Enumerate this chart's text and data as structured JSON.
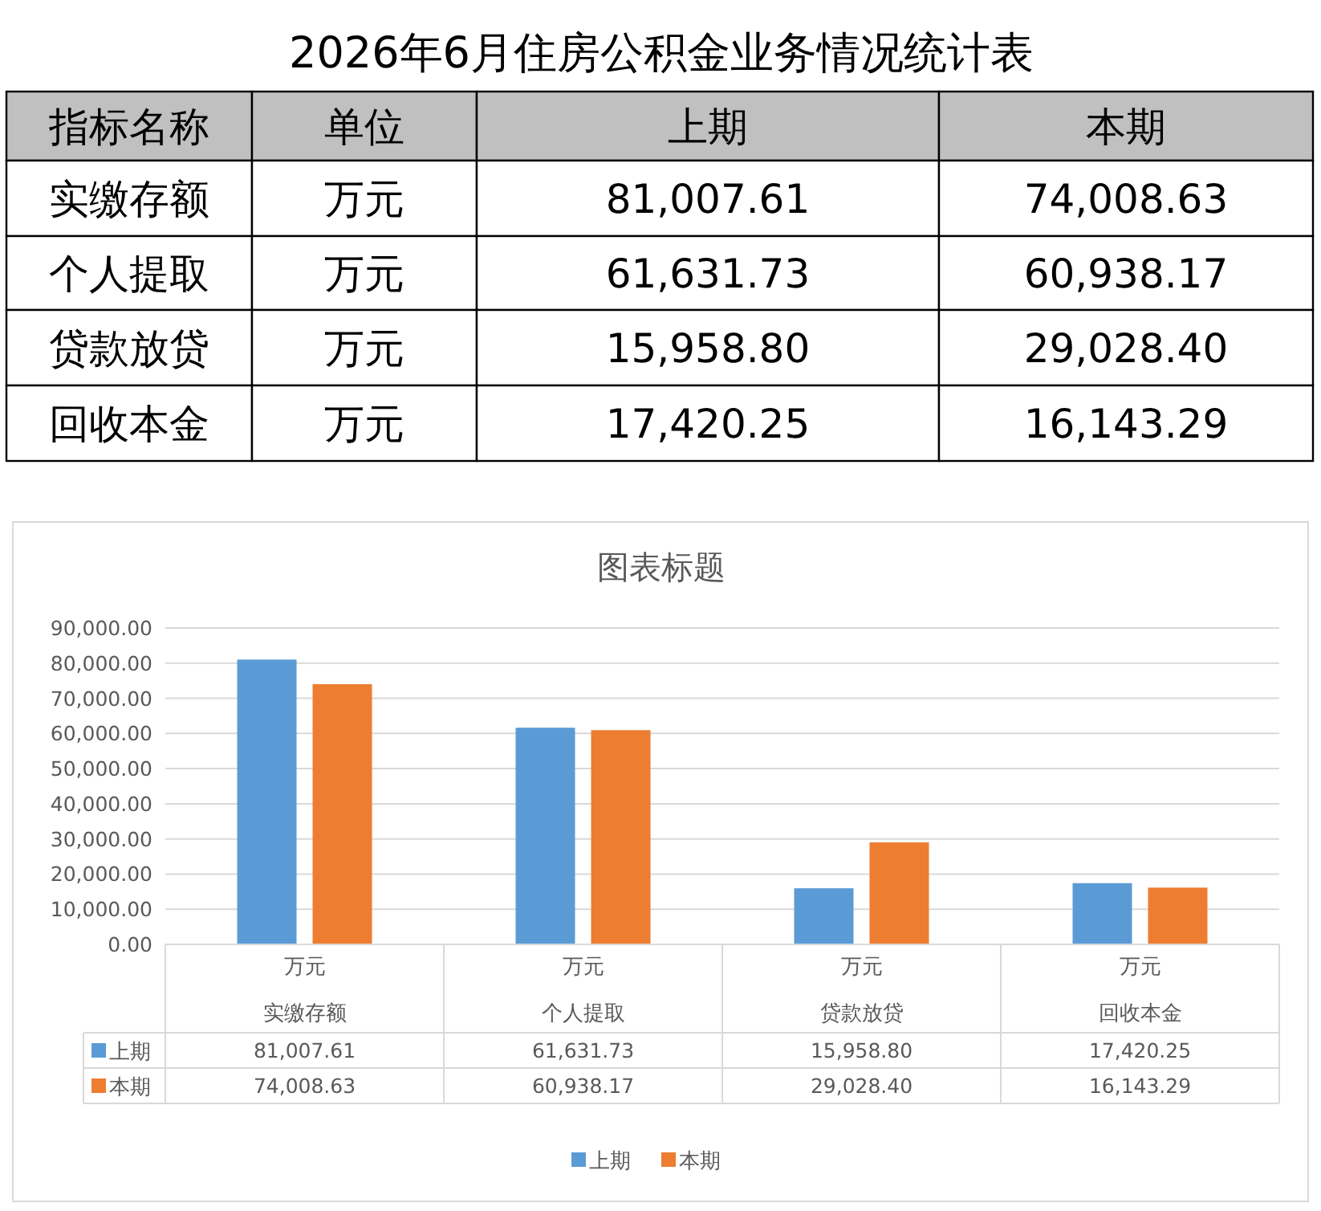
{
  "chart_data": [
    {
      "type": "other",
      "title": "2026年6月住房公积金业务情况统计表",
      "annotations": [
        "指标名称",
        "单位",
        "上期",
        "本期",
        "实缴存额",
        "万元",
        "81,007.61",
        "74,008.63",
        "个人提取",
        "万元",
        "61,631.73",
        "60,938.17",
        "贷款放贷",
        "万元",
        "15,958.80",
        "29,028.40",
        "回收本金",
        "万元",
        "17,420.25",
        "16,143.29"
      ]
    },
    {
      "type": "bar",
      "title": "图表标题",
      "categories": [
        "实缴存额",
        "个人提取",
        "贷款放贷",
        "回收本金"
      ],
      "annotations": [
        "万元",
        "万元",
        "万元",
        "万元"
      ],
      "series": [
        {
          "name": "上期",
          "color": "#5b9bd5",
          "values": [
            81007.61,
            61631.73,
            15958.8,
            17420.25
          ],
          "value_labels": [
            "81,007.61",
            "61,631.73",
            "15,958.80",
            "17,420.25"
          ]
        },
        {
          "name": "本期",
          "color": "#ed7d31",
          "values": [
            74008.63,
            60938.17,
            29028.4,
            16143.29
          ],
          "value_labels": [
            "74,008.63",
            "60,938.17",
            "29,028.40",
            "16,143.29"
          ]
        }
      ],
      "ylim": [
        0,
        90000
      ],
      "yticks": [
        {
          "value": 0,
          "label": "0.00"
        },
        {
          "value": 10000,
          "label": "10,000.00"
        },
        {
          "value": 20000,
          "label": "20,000.00"
        },
        {
          "value": 30000,
          "label": "30,000.00"
        },
        {
          "value": 40000,
          "label": "40,000.00"
        },
        {
          "value": 50000,
          "label": "50,000.00"
        },
        {
          "value": 60000,
          "label": "60,000.00"
        },
        {
          "value": 70000,
          "label": "70,000.00"
        },
        {
          "value": 80000,
          "label": "80,000.00"
        },
        {
          "value": 90000,
          "label": "90,000.00"
        }
      ],
      "grid": "y",
      "legend": "bottom"
    }
  ]
}
